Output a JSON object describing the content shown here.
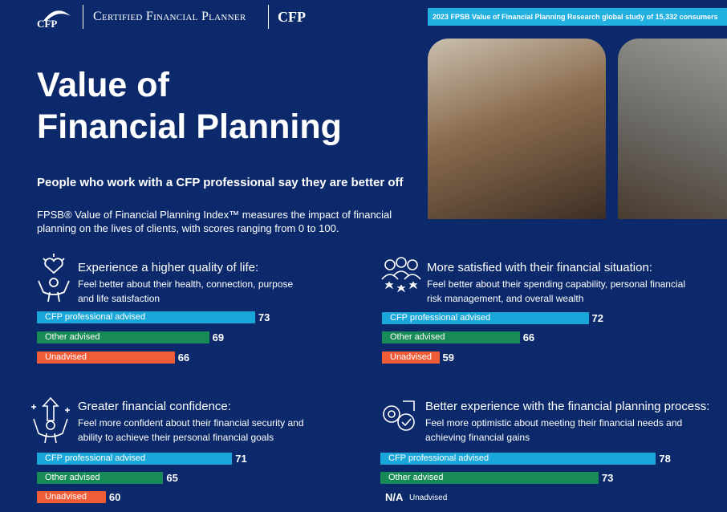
{
  "header": {
    "logo": "CFP",
    "brand": "Certified Financial Planner",
    "brand_mark": "CFP",
    "banner": "2023 FPSB Value of Financial Planning Research global study of 15,332 consumers"
  },
  "title_line1": "Value of",
  "title_line2": "Financial Planning",
  "subtitle": "People who work with a CFP professional say they are better off",
  "intro": "FPSB® Value of Financial Planning Index™ measures the impact of financial planning on the lives of clients, with scores ranging from 0 to 100.",
  "xlim": [
    54,
    80
  ],
  "panels": [
    {
      "heading": "Experience a higher quality of life:",
      "description": "Feel better about their health, connection, purpose and life satisfaction",
      "bars": [
        {
          "label": "CFP professional advised",
          "value": 73,
          "color": "#1ba6d9"
        },
        {
          "label": "Other advised",
          "value": 69,
          "color": "#178a57"
        },
        {
          "label": "Unadvised",
          "value": 66,
          "color": "#ef5c38"
        }
      ]
    },
    {
      "heading": "More satisfied with their financial situation:",
      "description": "Feel better about their spending capability, personal financial risk management, and overall wealth",
      "bars": [
        {
          "label": "CFP professional advised",
          "value": 72,
          "color": "#1ba6d9"
        },
        {
          "label": "Other advised",
          "value": 66,
          "color": "#178a57"
        },
        {
          "label": "Unadvised",
          "value": 59,
          "color": "#ef5c38"
        }
      ]
    },
    {
      "heading": "Greater financial confidence:",
      "description": "Feel more confident about their financial security and ability to achieve their personal financial goals",
      "bars": [
        {
          "label": "CFP professional advised",
          "value": 71,
          "color": "#1ba6d9"
        },
        {
          "label": "Other advised",
          "value": 65,
          "color": "#178a57"
        },
        {
          "label": "Unadvised",
          "value": 60,
          "color": "#ef5c38"
        }
      ]
    },
    {
      "heading": "Better experience with the financial planning process:",
      "description": "Feel more optimistic about meeting their financial needs and achieving financial gains",
      "bars": [
        {
          "label": "CFP professional advised",
          "value": 78,
          "color": "#1ba6d9"
        },
        {
          "label": "Other advised",
          "value": 73,
          "color": "#178a57"
        },
        {
          "label": "Unadvised",
          "value": null,
          "value_label": "N/A",
          "color": "#ef5c38"
        }
      ]
    }
  ]
}
